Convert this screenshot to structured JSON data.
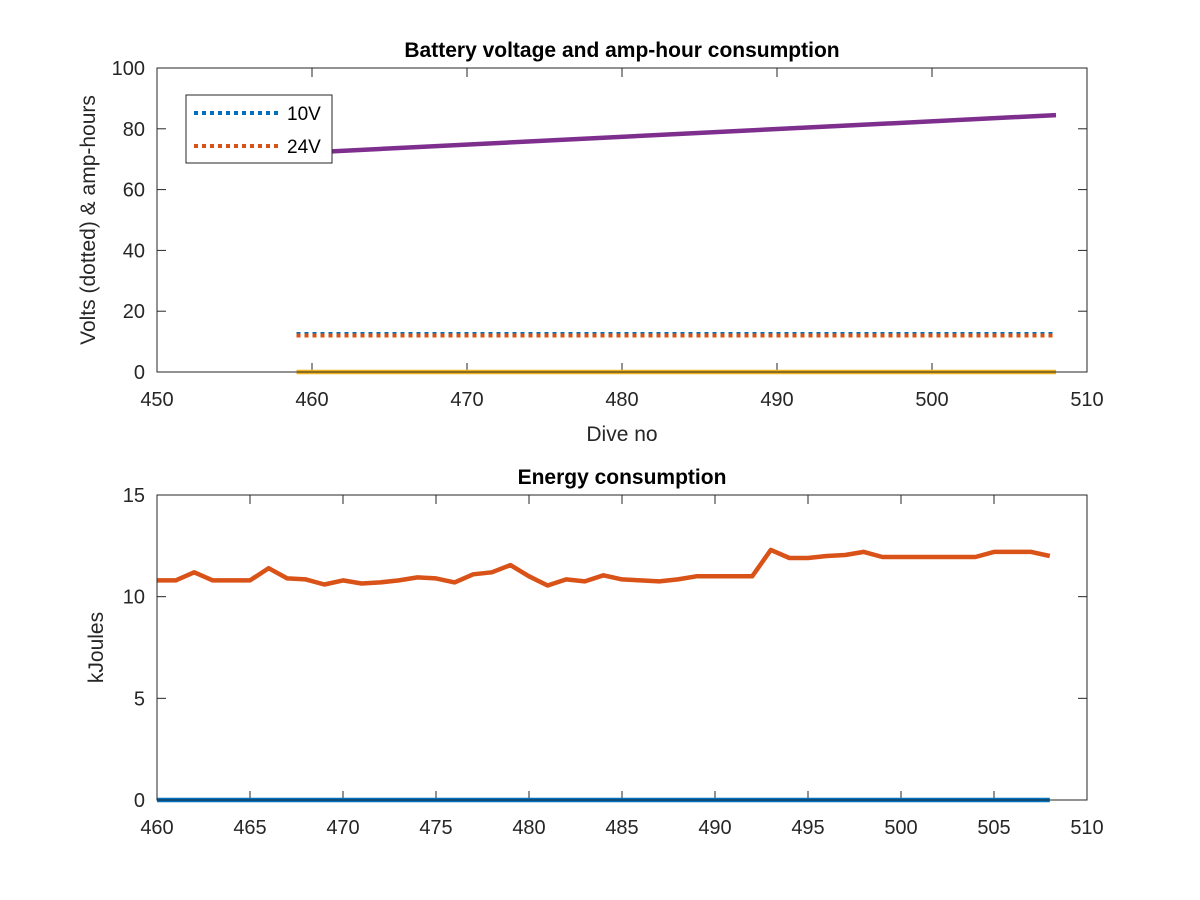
{
  "colors": {
    "blue": "#0072BD",
    "orange": "#D95319",
    "yellow": "#EDB120",
    "purple": "#7E2F8E",
    "axis": "#262626"
  },
  "chart_data": [
    {
      "type": "line",
      "title": "Battery voltage and amp-hour consumption",
      "xlabel": "Dive no",
      "ylabel": "Volts (dotted) & amp-hours",
      "xlim": [
        450,
        510
      ],
      "ylim": [
        0,
        100
      ],
      "xticks": [
        450,
        460,
        470,
        480,
        490,
        500,
        510
      ],
      "yticks": [
        0,
        20,
        40,
        60,
        80,
        100
      ],
      "legend_position": "top-left",
      "legend": [
        "10V",
        "24V"
      ],
      "series": [
        {
          "name": "10V",
          "color": "#0072BD",
          "style": "dotted",
          "x": [
            459,
            508
          ],
          "y": [
            12.5,
            12.5
          ]
        },
        {
          "name": "24V",
          "color": "#D95319",
          "style": "dotted",
          "x": [
            459,
            508
          ],
          "y": [
            12.0,
            12.0
          ]
        },
        {
          "color": "#EDB120",
          "style": "solid",
          "x": [
            459,
            508
          ],
          "y": [
            0,
            0
          ]
        },
        {
          "color": "#7E2F8E",
          "style": "solid",
          "x": [
            459,
            508
          ],
          "y": [
            72,
            84.5
          ]
        }
      ]
    },
    {
      "type": "line",
      "title": "Energy consumption",
      "xlabel": "",
      "ylabel": "kJoules",
      "xlim": [
        460,
        510
      ],
      "ylim": [
        0,
        15
      ],
      "xticks": [
        460,
        465,
        470,
        475,
        480,
        485,
        490,
        495,
        500,
        505,
        510
      ],
      "yticks": [
        0,
        5,
        10,
        15
      ],
      "series": [
        {
          "color": "#D95319",
          "style": "solid",
          "x": [
            460,
            461,
            462,
            463,
            464,
            465,
            466,
            467,
            468,
            469,
            470,
            471,
            472,
            473,
            474,
            475,
            476,
            477,
            478,
            479,
            480,
            481,
            482,
            483,
            484,
            485,
            486,
            487,
            488,
            489,
            490,
            491,
            492,
            493,
            494,
            495,
            496,
            497,
            498,
            499,
            500,
            501,
            502,
            503,
            504,
            505,
            506,
            507,
            508
          ],
          "y": [
            10.8,
            10.8,
            11.2,
            10.8,
            10.8,
            10.8,
            11.4,
            10.9,
            10.85,
            10.6,
            10.8,
            10.65,
            10.7,
            10.8,
            10.95,
            10.9,
            10.7,
            11.1,
            11.2,
            11.55,
            11.0,
            10.55,
            10.85,
            10.75,
            11.05,
            10.85,
            10.8,
            10.75,
            10.85,
            11.0,
            11.0,
            11.0,
            11.0,
            12.3,
            11.9,
            11.9,
            12.0,
            12.05,
            12.2,
            11.95,
            11.95,
            11.95,
            11.95,
            11.95,
            11.95,
            12.2,
            12.2,
            12.2,
            12.0
          ]
        },
        {
          "color": "#0072BD",
          "style": "solid",
          "x": [
            460,
            508
          ],
          "y": [
            0,
            0
          ]
        }
      ]
    }
  ]
}
